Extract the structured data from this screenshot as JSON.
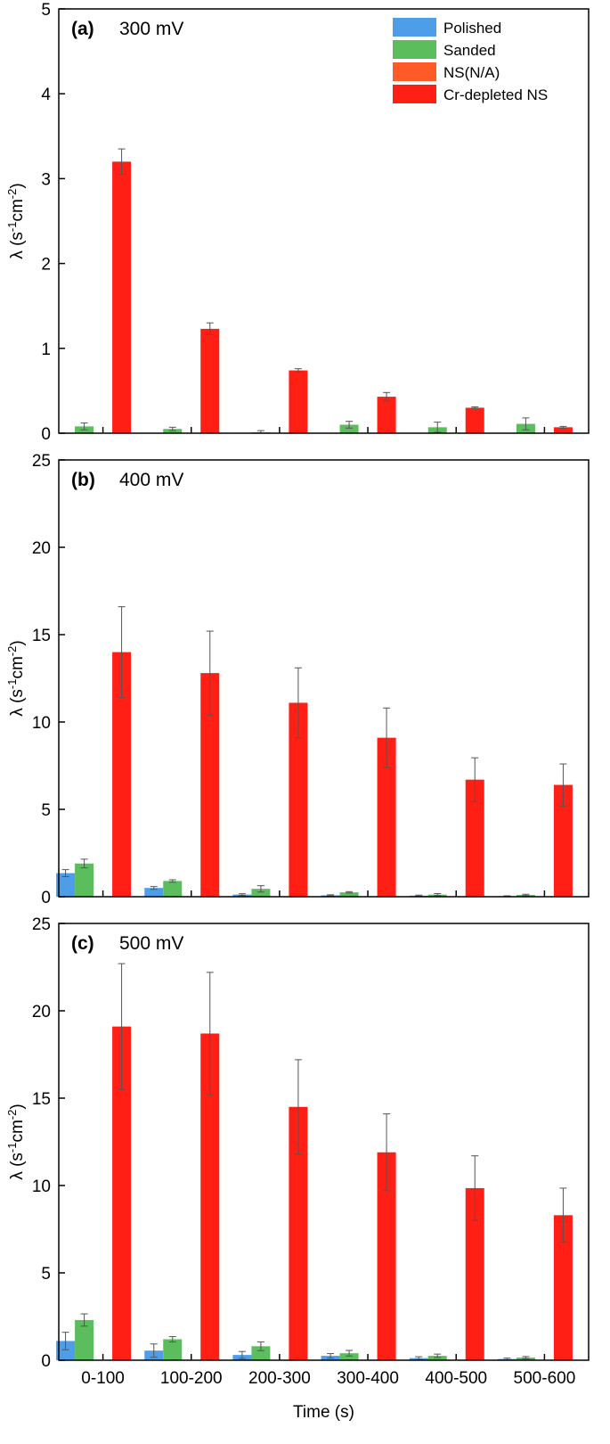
{
  "chart_data": {
    "type": "bar",
    "categories": [
      "0-100",
      "100-200",
      "200-300",
      "300-400",
      "400-500",
      "500-600"
    ],
    "xlabel": "Time (s)",
    "legend": {
      "position": "top-right",
      "entries": [
        {
          "name": "Polished",
          "color": "#4d9de8"
        },
        {
          "name": "Sanded",
          "color": "#5cbd5c"
        },
        {
          "name": "NS(N/A)",
          "color": "#ff5a28"
        },
        {
          "name": "Cr-depleted NS",
          "color": "#ff1f14"
        }
      ]
    },
    "panels": [
      {
        "tag": "(a)",
        "voltage": "300 mV",
        "ylabel_main": "λ (s",
        "ylabel_sup1": "-1",
        "ylabel_mid": "cm",
        "ylabel_sup2": "-2",
        "ylabel_end": ")",
        "ylim": [
          0,
          5
        ],
        "yticks": [
          "0",
          "1",
          "2",
          "3",
          "4",
          "5"
        ],
        "ytick_values": [
          0,
          1,
          2,
          3,
          4,
          5
        ],
        "series": [
          {
            "name": "Polished",
            "values": [
              null,
              null,
              null,
              null,
              null,
              null
            ],
            "errors": [
              null,
              null,
              null,
              null,
              null,
              null
            ]
          },
          {
            "name": "Sanded",
            "values": [
              0.08,
              0.05,
              0.01,
              0.1,
              0.07,
              0.11
            ],
            "errors": [
              0.04,
              0.02,
              0.02,
              0.04,
              0.06,
              0.07
            ]
          },
          {
            "name": "NS(N/A)",
            "values": [
              null,
              null,
              null,
              null,
              null,
              null
            ],
            "errors": [
              null,
              null,
              null,
              null,
              null,
              null
            ]
          },
          {
            "name": "Cr-depleted NS",
            "values": [
              3.2,
              1.23,
              0.74,
              0.43,
              0.3,
              0.07
            ],
            "errors": [
              0.15,
              0.07,
              0.02,
              0.05,
              0.01,
              0.01
            ]
          }
        ]
      },
      {
        "tag": "(b)",
        "voltage": "400 mV",
        "ylabel_main": "λ (s",
        "ylabel_sup1": "-1",
        "ylabel_mid": "cm",
        "ylabel_sup2": "-2",
        "ylabel_end": ")",
        "ylim": [
          0,
          25
        ],
        "yticks": [
          "0",
          "5",
          "10",
          "15",
          "20",
          "25"
        ],
        "ytick_values": [
          0,
          5,
          10,
          15,
          20,
          25
        ],
        "series": [
          {
            "name": "Polished",
            "values": [
              1.35,
              0.5,
              0.12,
              0.08,
              0.06,
              0.03
            ],
            "errors": [
              0.2,
              0.08,
              0.05,
              0.03,
              0.03,
              0.02
            ]
          },
          {
            "name": "Sanded",
            "values": [
              1.9,
              0.9,
              0.45,
              0.25,
              0.12,
              0.1
            ],
            "errors": [
              0.25,
              0.07,
              0.18,
              0.04,
              0.06,
              0.04
            ]
          },
          {
            "name": "NS(N/A)",
            "values": [
              null,
              null,
              null,
              null,
              null,
              null
            ],
            "errors": [
              null,
              null,
              null,
              null,
              null,
              null
            ]
          },
          {
            "name": "Cr-depleted NS",
            "values": [
              14.0,
              12.8,
              11.1,
              9.1,
              6.7,
              6.4
            ],
            "errors": [
              2.6,
              2.4,
              2.0,
              1.7,
              1.25,
              1.2
            ]
          }
        ]
      },
      {
        "tag": "(c)",
        "voltage": "500 mV",
        "ylabel_main": "λ (s",
        "ylabel_sup1": "-1",
        "ylabel_mid": "cm",
        "ylabel_sup2": "-2",
        "ylabel_end": ")",
        "ylim": [
          0,
          25
        ],
        "yticks": [
          "0",
          "5",
          "10",
          "15",
          "20",
          "25"
        ],
        "ytick_values": [
          0,
          5,
          10,
          15,
          20,
          25
        ],
        "series": [
          {
            "name": "Polished",
            "values": [
              1.1,
              0.55,
              0.3,
              0.25,
              0.12,
              0.07
            ],
            "errors": [
              0.5,
              0.38,
              0.2,
              0.13,
              0.08,
              0.05
            ]
          },
          {
            "name": "Sanded",
            "values": [
              2.3,
              1.2,
              0.8,
              0.4,
              0.25,
              0.15
            ],
            "errors": [
              0.35,
              0.15,
              0.25,
              0.16,
              0.1,
              0.06
            ]
          },
          {
            "name": "NS(N/A)",
            "values": [
              null,
              null,
              null,
              null,
              null,
              null
            ],
            "errors": [
              null,
              null,
              null,
              null,
              null,
              null
            ]
          },
          {
            "name": "Cr-depleted NS",
            "values": [
              19.1,
              18.7,
              14.5,
              11.9,
              9.85,
              8.3
            ],
            "errors": [
              3.6,
              3.5,
              2.7,
              2.2,
              1.85,
              1.55
            ]
          }
        ]
      }
    ]
  }
}
